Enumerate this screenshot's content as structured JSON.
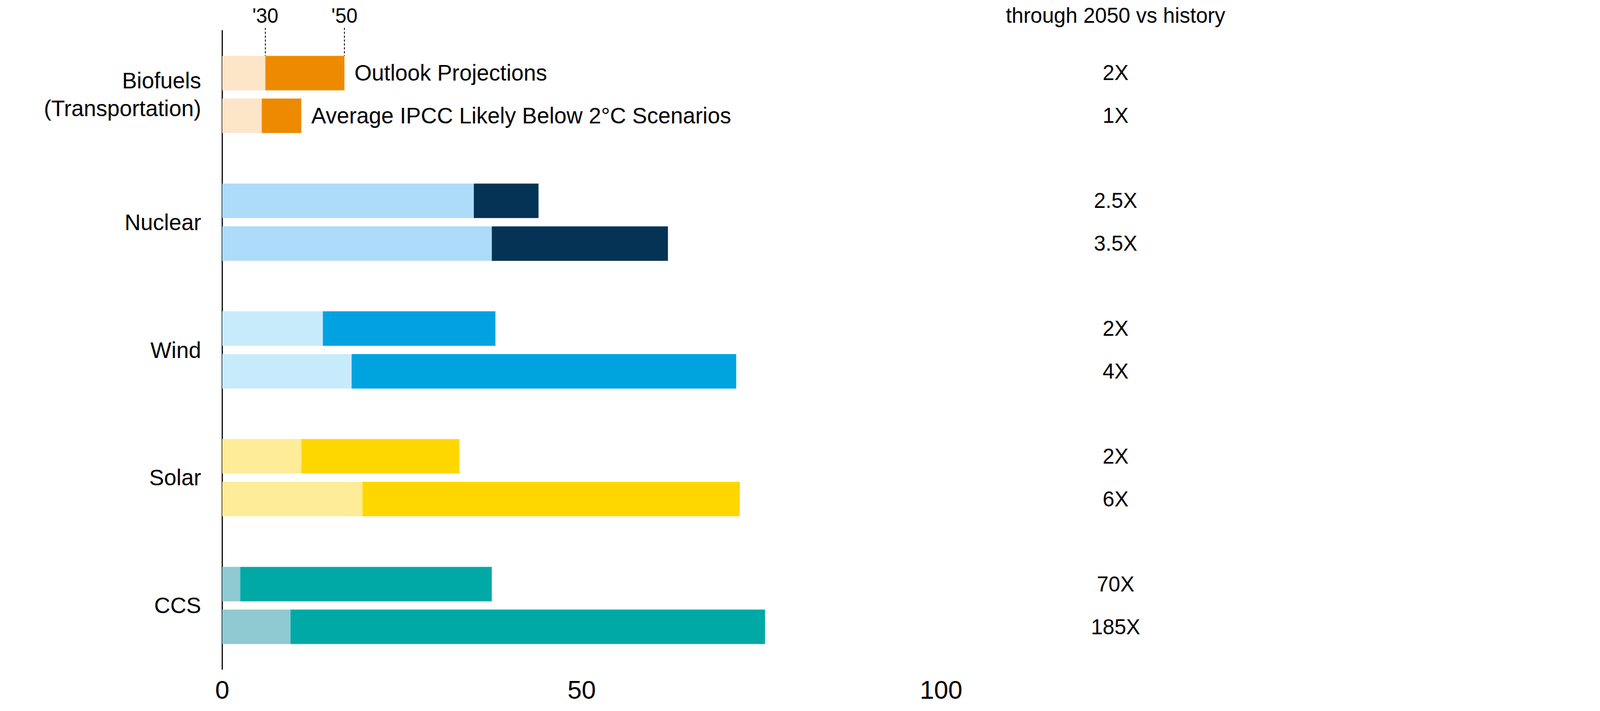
{
  "chart_data": {
    "type": "bar",
    "orientation": "horizontal",
    "stacked": true,
    "grid": false,
    "categories": [
      "Biofuels\n(Transportation)",
      "Nuclear",
      "Wind",
      "Solar",
      "CCS"
    ],
    "xlim": [
      0,
      100
    ],
    "xticks": [
      0,
      50,
      100
    ],
    "ratio_header": "through 2050 vs history",
    "groups": [
      {
        "name": "Outlook Projections",
        "segments": [
          {
            "name": "'30",
            "colors": [
              "#fde5c8",
              "#addbfa",
              "#c8ebfc",
              "#feec99",
              "#8fc9d1"
            ],
            "values": [
              6,
              35,
              14,
              11,
              2.5
            ]
          },
          {
            "name": "'50",
            "colors": [
              "#ee8a00",
              "#043355",
              "#00a3e0",
              "#ffd700",
              "#00a9a6"
            ],
            "values": [
              11,
              9,
              24,
              22,
              35
            ]
          }
        ],
        "ratios": {
          "values": [
            2,
            2.5,
            2,
            2,
            70
          ],
          "value_labels": [
            "2X",
            "2.5X",
            "2X",
            "2X",
            "70X"
          ]
        }
      },
      {
        "name": "Average IPCC Likely Below 2°C Scenarios",
        "segments": [
          {
            "name": "'30",
            "colors": [
              "#fde5c8",
              "#addbfa",
              "#c8ebfc",
              "#feec99",
              "#8fc9d1"
            ],
            "values": [
              5.5,
              37.5,
              18,
              19.5,
              9.5
            ]
          },
          {
            "name": "'50",
            "colors": [
              "#ee8a00",
              "#043355",
              "#00a3e0",
              "#ffd700",
              "#00a9a6"
            ],
            "values": [
              5.5,
              24.5,
              53.5,
              52.5,
              66
            ]
          }
        ],
        "ratios": {
          "values": [
            1,
            3.5,
            4,
            6,
            185
          ],
          "value_labels": [
            "1X",
            "3.5X",
            "4X",
            "6X",
            "185X"
          ]
        }
      }
    ]
  }
}
